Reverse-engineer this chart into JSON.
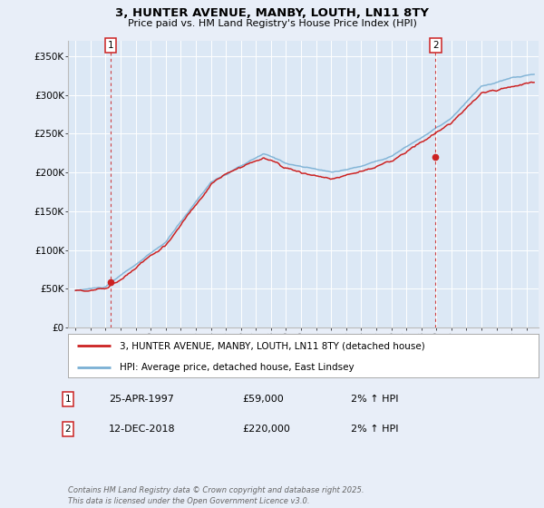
{
  "title": "3, HUNTER AVENUE, MANBY, LOUTH, LN11 8TY",
  "subtitle": "Price paid vs. HM Land Registry's House Price Index (HPI)",
  "ylim": [
    0,
    370000
  ],
  "xlim_start": 1994.5,
  "xlim_end": 2025.8,
  "background_color": "#e8eef8",
  "plot_bg_color": "#dce8f5",
  "grid_color": "#ffffff",
  "line_color_hpi": "#7ab0d4",
  "line_color_price": "#cc2222",
  "dashed_vline_color": "#cc2222",
  "ann1_x": 1997.32,
  "ann1_y": 59000,
  "ann2_x": 2018.95,
  "ann2_y": 220000,
  "legend_line1": "3, HUNTER AVENUE, MANBY, LOUTH, LN11 8TY (detached house)",
  "legend_line2": "HPI: Average price, detached house, East Lindsey",
  "table_rows": [
    {
      "num": "1",
      "date": "25-APR-1997",
      "price": "£59,000",
      "hpi": "2% ↑ HPI"
    },
    {
      "num": "2",
      "date": "12-DEC-2018",
      "price": "£220,000",
      "hpi": "2% ↑ HPI"
    }
  ],
  "footer": "Contains HM Land Registry data © Crown copyright and database right 2025.\nThis data is licensed under the Open Government Licence v3.0."
}
